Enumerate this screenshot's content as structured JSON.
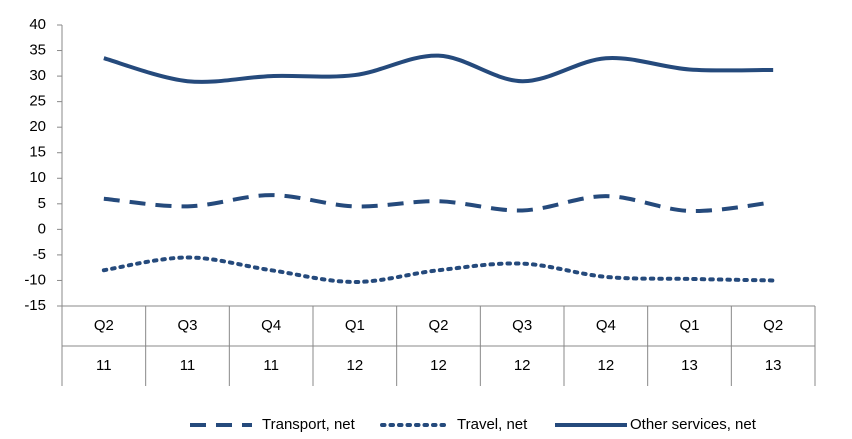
{
  "chart_data": {
    "type": "line",
    "categories": [
      "Q2",
      "Q3",
      "Q4",
      "Q1",
      "Q2",
      "Q3",
      "Q4",
      "Q1",
      "Q2"
    ],
    "category_groups": [
      "11",
      "11",
      "11",
      "12",
      "12",
      "12",
      "12",
      "13",
      "13"
    ],
    "series": [
      {
        "name": "Transport, net",
        "color": "#254a7c",
        "dash": "dashed",
        "values": [
          6,
          4.5,
          6.7,
          4.5,
          5.5,
          3.7,
          6.5,
          3.6,
          5.3
        ]
      },
      {
        "name": "Travel, net",
        "color": "#254a7c",
        "dash": "dotted",
        "values": [
          -8,
          -5.5,
          -8,
          -10.3,
          -8,
          -6.7,
          -9.3,
          -9.7,
          -10
        ]
      },
      {
        "name": "Other services, net",
        "color": "#254a7c",
        "dash": "solid",
        "values": [
          33.5,
          29,
          30,
          30.2,
          34,
          29,
          33.5,
          31.3,
          31.2
        ]
      }
    ],
    "ylim": [
      -15,
      40
    ],
    "yticks": [
      -15,
      -10,
      -5,
      0,
      5,
      10,
      15,
      20,
      25,
      30,
      35,
      40
    ],
    "legend": "bottom"
  }
}
